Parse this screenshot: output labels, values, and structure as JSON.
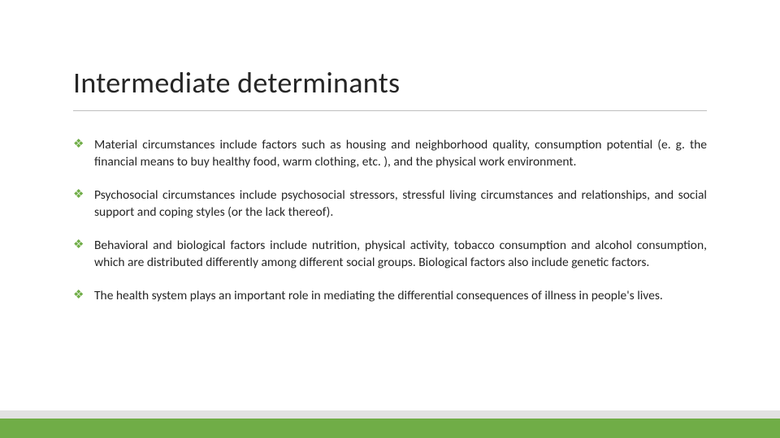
{
  "title": "Intermediate determinants",
  "title_fontsize": 36,
  "title_color": "#262626",
  "underline_color": "#bfbfbf",
  "body_fontsize": 15.5,
  "body_color": "#262626",
  "bullet_glyph": "❖",
  "bullet_color": "#70ad47",
  "bullets": [
    "Material circumstances include factors such as housing and neighborhood quality, consumption potential (e. g. the financial means to buy healthy food, warm clothing, etc. ), and the physical work environment.",
    "Psychosocial circumstances include psychosocial stressors, stressful living circumstances and relationships, and social support and coping styles (or the lack thereof).",
    "Behavioral and biological factors include nutrition, physical activity, tobacco consumption and alcohol consumption, which are distributed differently among different social groups. Biological factors also include genetic factors.",
    "The health system plays an important role in mediating the differential consequences of illness in people's lives."
  ],
  "footer_bar_color": "#70ad47",
  "footer_shadow_color": "#e2e2e2",
  "background_color": "#ffffff"
}
